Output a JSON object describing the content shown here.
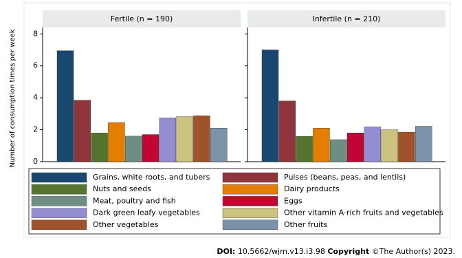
{
  "chart_data": {
    "type": "bar",
    "categories": [
      "Fertile (n = 190)",
      "Infertile (n = 210)"
    ],
    "y_label": "Number of consumption times per week",
    "ylim": [
      0,
      8.4
    ],
    "yticks": [
      0,
      2,
      4,
      6,
      8
    ],
    "series": [
      {
        "name": "Grains, white roots, and tubers",
        "color": "#1a476f",
        "values": [
          6.95,
          7.0
        ]
      },
      {
        "name": "Pulses (beans, peas, and lentils)",
        "color": "#90353b",
        "values": [
          3.85,
          3.8
        ]
      },
      {
        "name": "Nuts and seeds",
        "color": "#55752f",
        "values": [
          1.8,
          1.58
        ]
      },
      {
        "name": "Dairy products",
        "color": "#e37e00",
        "values": [
          2.45,
          2.1
        ]
      },
      {
        "name": "Meat, poultry and fish",
        "color": "#6e8e84",
        "values": [
          1.6,
          1.38
        ]
      },
      {
        "name": "Eggs",
        "color": "#c10534",
        "values": [
          1.7,
          1.8
        ]
      },
      {
        "name": "Dark green leafy vegetables",
        "color": "#938dd2",
        "values": [
          2.75,
          2.18
        ]
      },
      {
        "name": "Other vitamin A-rich fruits and vegetables",
        "color": "#cac27e",
        "values": [
          2.82,
          2.0
        ]
      },
      {
        "name": "Other vegetables",
        "color": "#a0522d",
        "values": [
          2.88,
          1.85
        ]
      },
      {
        "name": "Other fruits",
        "color": "#7b92a8",
        "values": [
          2.1,
          2.22
        ]
      }
    ]
  },
  "footer": {
    "doi_label": "DOI:",
    "doi": "10.5662/wjm.v13.i3.98",
    "copyright_label": "Copyright",
    "copyright": "©The Author(s) 2023."
  }
}
